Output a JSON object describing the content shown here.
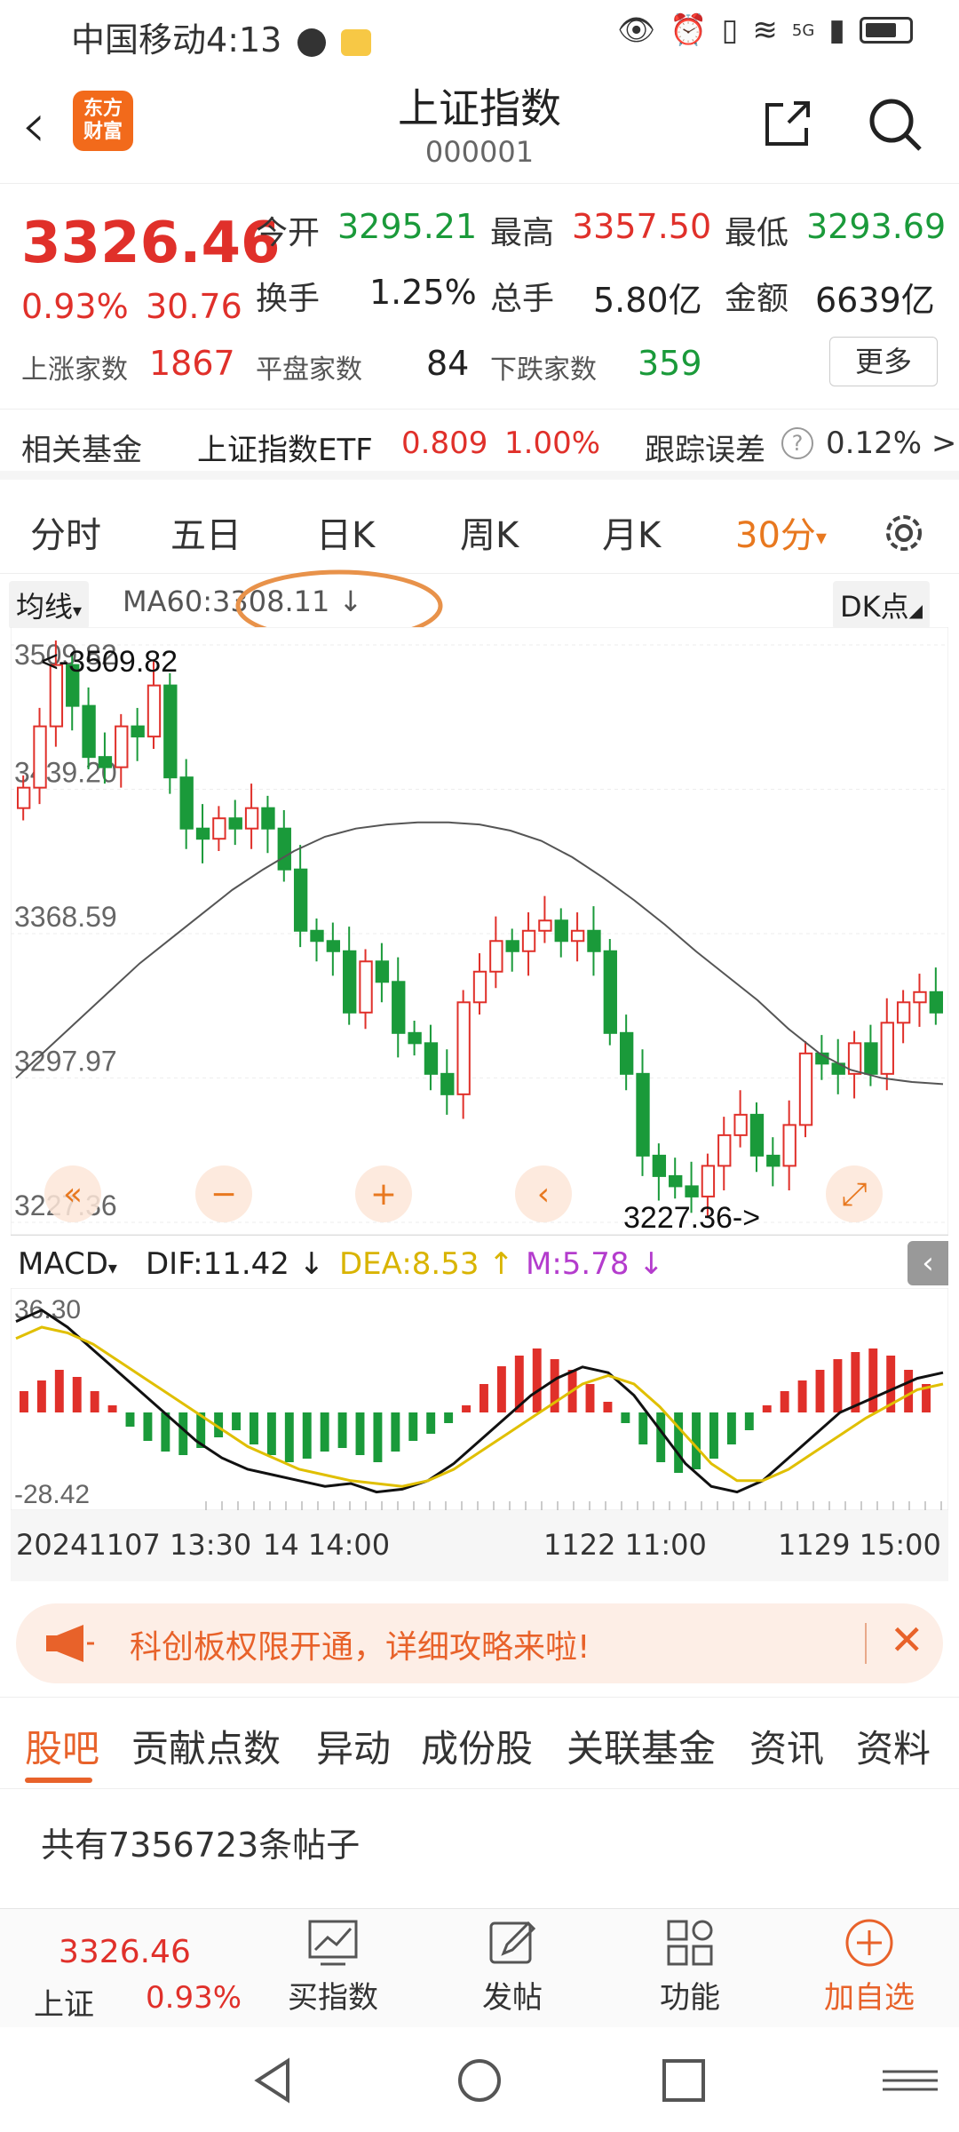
{
  "status_bar": {
    "carrier": "中国移动",
    "time": "4:13",
    "network": "5G"
  },
  "header": {
    "back_icon": "chevron-left-icon",
    "logo_text_1": "东方",
    "logo_text_2": "财富",
    "title": "上证指数",
    "code": "000001"
  },
  "quote": {
    "price": "3326.46",
    "change_pct": "0.93%",
    "change": "30.76",
    "open_label": "今开",
    "open": "3295.21",
    "high_label": "最高",
    "high": "3357.50",
    "low_label": "最低",
    "low": "3293.69",
    "turnover_label": "换手",
    "turnover": "1.25%",
    "volume_label": "总手",
    "volume": "5.80亿",
    "amount_label": "金额",
    "amount": "6639亿",
    "up_label": "上涨家数",
    "up": "1867",
    "flat_label": "平盘家数",
    "flat": "84",
    "down_label": "下跌家数",
    "down": "359",
    "more_label": "更多"
  },
  "fund_row": {
    "label": "相关基金",
    "fund_name": "上证指数ETF",
    "fund_price": "0.809",
    "fund_pct": "1.00%",
    "err_label": "跟踪误差",
    "err_value": "0.12% >"
  },
  "ktabs": [
    "分时",
    "五日",
    "日K",
    "周K",
    "月K",
    "30分"
  ],
  "ma_row": {
    "selector": "均线",
    "ma60": "MA60:3308.11 ↓",
    "dk": "DK点"
  },
  "chart_data": {
    "type": "candlestick",
    "y_ticks": [
      "3509.82",
      "3439.20",
      "3368.59",
      "3297.97",
      "3227.36"
    ],
    "ylim": [
      3227.36,
      3509.82
    ],
    "high_marker": "<-3509.82",
    "low_marker": "3227.36->",
    "ma60": [
      3298,
      3312,
      3326,
      3340,
      3354,
      3366,
      3378,
      3390,
      3400,
      3409,
      3416,
      3420,
      3422,
      3423,
      3423,
      3422,
      3419,
      3414,
      3406,
      3396,
      3385,
      3373,
      3360,
      3348,
      3336,
      3322,
      3310,
      3302,
      3298,
      3296,
      3295
    ],
    "closes": [
      3440,
      3470,
      3500,
      3480,
      3455,
      3450,
      3470,
      3465,
      3490,
      3445,
      3420,
      3415,
      3425,
      3420,
      3430,
      3420,
      3400,
      3370,
      3365,
      3360,
      3330,
      3355,
      3345,
      3320,
      3315,
      3300,
      3290,
      3335,
      3350,
      3365,
      3360,
      3370,
      3375,
      3365,
      3370,
      3360,
      3320,
      3300,
      3260,
      3250,
      3245,
      3240,
      3255,
      3270,
      3280,
      3260,
      3255,
      3275,
      3310,
      3305,
      3300,
      3315,
      3300,
      3325,
      3335,
      3340,
      3330
    ],
    "macd": {
      "dif": "DIF:11.42 ↓",
      "dea": "DEA:8.53 ↑",
      "m": "M:5.78 ↓",
      "label": "MACD",
      "y_top": "36.30",
      "y_bottom": "-28.42"
    },
    "macd_bars": [
      6,
      9,
      12,
      10,
      6,
      2,
      -4,
      -8,
      -11,
      -12,
      -10,
      -7,
      -5,
      -9,
      -12,
      -14,
      -13,
      -11,
      -10,
      -12,
      -14,
      -11,
      -8,
      -6,
      -3,
      2,
      8,
      13,
      16,
      18,
      15,
      12,
      8,
      3,
      -3,
      -9,
      -14,
      -17,
      -16,
      -13,
      -9,
      -5,
      2,
      6,
      9,
      12,
      15,
      17,
      18,
      16,
      12,
      8
    ],
    "macd_dif": [
      32,
      36,
      30,
      22,
      14,
      6,
      -2,
      -10,
      -16,
      -20,
      -22,
      -24,
      -26,
      -25,
      -28,
      -27,
      -24,
      -18,
      -10,
      -2,
      6,
      12,
      16,
      14,
      6,
      -6,
      -18,
      -26,
      -28,
      -24,
      -16,
      -8,
      0,
      4,
      8,
      12,
      14
    ],
    "macd_dea": [
      26,
      30,
      28,
      24,
      18,
      12,
      6,
      0,
      -6,
      -12,
      -16,
      -20,
      -22,
      -24,
      -25,
      -26,
      -24,
      -20,
      -14,
      -8,
      -2,
      4,
      10,
      13,
      10,
      2,
      -8,
      -18,
      -24,
      -24,
      -20,
      -14,
      -8,
      -2,
      3,
      8,
      10
    ],
    "x_ticks": [
      "20241107 13:30",
      "14 14:00",
      "1122 11:00",
      "1129 15:00"
    ]
  },
  "chart_controls": [
    "chevrons-left-icon",
    "minus-icon",
    "plus-icon",
    "chevron-left-icon",
    "expand-icon"
  ],
  "banner": {
    "text": "科创板权限开通，详细攻略来啦!",
    "close": "✕"
  },
  "bottom_tabs": [
    "股吧",
    "贡献点数",
    "异动",
    "成份股",
    "关联基金",
    "资讯",
    "资料"
  ],
  "posts_count": "共有7356723条帖子",
  "toolbar": {
    "price": "3326.46",
    "name": "上证",
    "pct": "0.93%",
    "buy": "买指数",
    "post": "发帖",
    "func": "功能",
    "add": "加自选"
  },
  "colors": {
    "up": "#e0302a",
    "down": "#1a9a3a",
    "accent": "#e8781f"
  }
}
